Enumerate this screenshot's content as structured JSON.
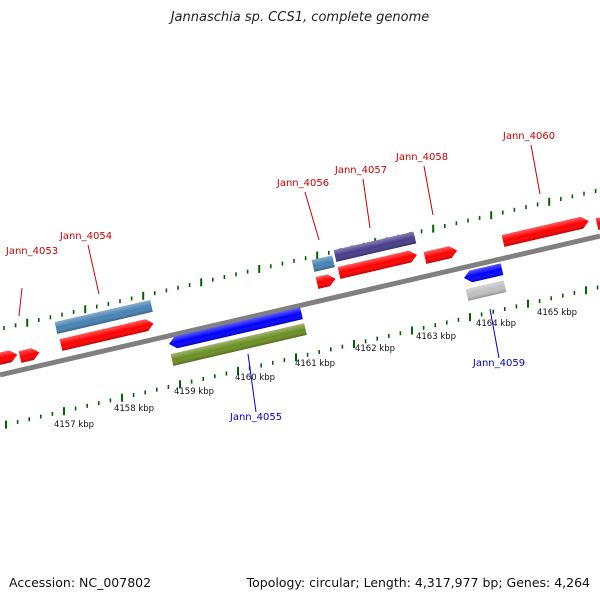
{
  "title": "Jannaschia sp. CCS1, complete genome",
  "footer": {
    "accession": "Accession: NC_007802",
    "summary": "Topology: circular; Length: 4,317,977 bp; Genes: 4,264"
  },
  "colors": {
    "forward_gene": "#ff0000",
    "reverse_gene": "#0000ff",
    "steel": "#4682b4",
    "slate": "#483d8b",
    "olive": "#6b8e23",
    "grey": "#c0c0c0",
    "backbone": "#808080",
    "tick": "#006400",
    "forward_label": "#cc0000",
    "reverse_label": "#0000cc"
  },
  "scale_labels": [
    "4157 kbp",
    "4158 kbp",
    "4159 kbp",
    "4160 kbp",
    "4161 kbp",
    "4162 kbp",
    "4163 kbp",
    "4164 kbp",
    "4165 kbp"
  ],
  "gene_labels": [
    {
      "name": "Jann_4053",
      "strand": "forward"
    },
    {
      "name": "Jann_4054",
      "strand": "forward"
    },
    {
      "name": "Jann_4055",
      "strand": "reverse"
    },
    {
      "name": "Jann_4056",
      "strand": "forward"
    },
    {
      "name": "Jann_4057",
      "strand": "forward"
    },
    {
      "name": "Jann_4058",
      "strand": "forward"
    },
    {
      "name": "Jann_4059",
      "strand": "reverse"
    },
    {
      "name": "Jann_4060",
      "strand": "forward"
    }
  ]
}
